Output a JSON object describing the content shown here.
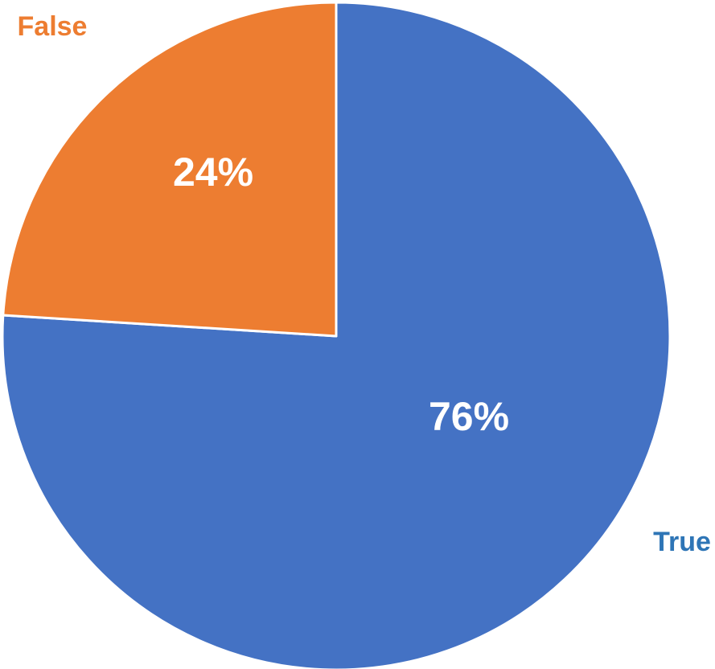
{
  "chart_data": {
    "type": "pie",
    "categories": [
      "True",
      "False"
    ],
    "values": [
      76,
      24
    ],
    "value_labels": [
      "76%",
      "24%"
    ],
    "colors": [
      "#4472c4",
      "#ed7d31"
    ],
    "label_colors": [
      "#2e75b6",
      "#ed7d31"
    ]
  }
}
